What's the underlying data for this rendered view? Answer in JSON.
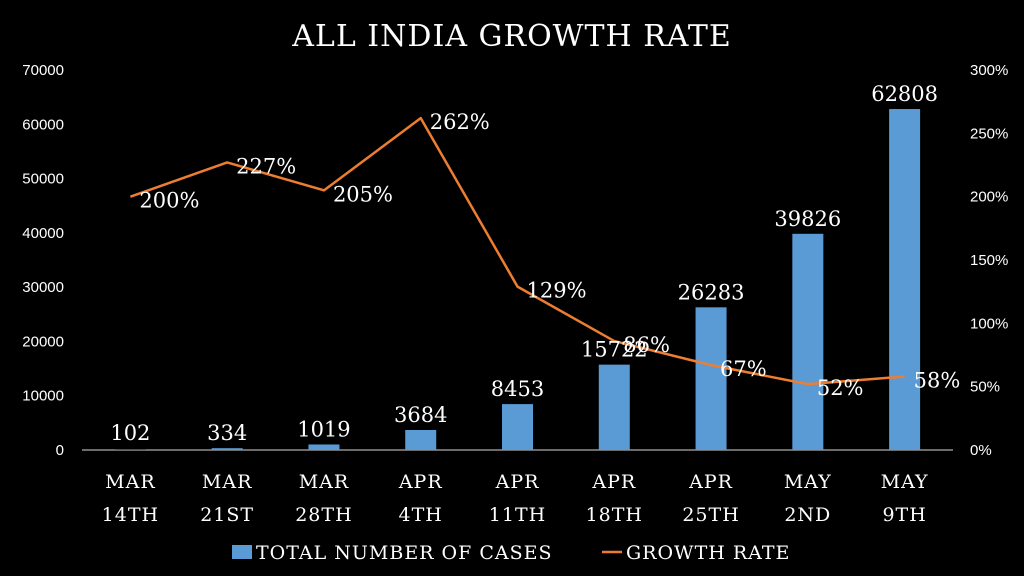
{
  "chart_data": {
    "type": "bar",
    "title": "ALL INDIA GROWTH RATE",
    "categories": [
      "MAR 14TH",
      "MAR 21ST",
      "MAR 28TH",
      "APR 4TH",
      "APR 11TH",
      "APR 18TH",
      "APR 25TH",
      "MAY 2ND",
      "MAY 9TH"
    ],
    "series": [
      {
        "name": "TOTAL NUMBER OF CASES",
        "type": "bar",
        "axis": "left",
        "color": "#5b9bd5",
        "values": [
          102,
          334,
          1019,
          3684,
          8453,
          15722,
          26283,
          39826,
          62808
        ],
        "labels": [
          "102",
          "334",
          "1019",
          "3684",
          "8453",
          "15722",
          "26283",
          "39826",
          "62808"
        ]
      },
      {
        "name": "GROWTH RATE",
        "type": "line",
        "axis": "right",
        "color": "#ed7d31",
        "values": [
          200,
          227,
          205,
          262,
          129,
          86,
          67,
          52,
          58
        ],
        "labels": [
          "200%",
          "227%",
          "205%",
          "262%",
          "129%",
          "86%",
          "67%",
          "52%",
          "58%"
        ]
      }
    ],
    "y_left": {
      "min": 0,
      "max": 70000,
      "ticks": [
        "0",
        "10000",
        "20000",
        "30000",
        "40000",
        "50000",
        "60000",
        "70000"
      ]
    },
    "y_right": {
      "min": 0,
      "max": 300,
      "ticks": [
        "0%",
        "50%",
        "100%",
        "150%",
        "200%",
        "250%",
        "300%"
      ]
    },
    "grid": false,
    "legend_position": "bottom"
  }
}
